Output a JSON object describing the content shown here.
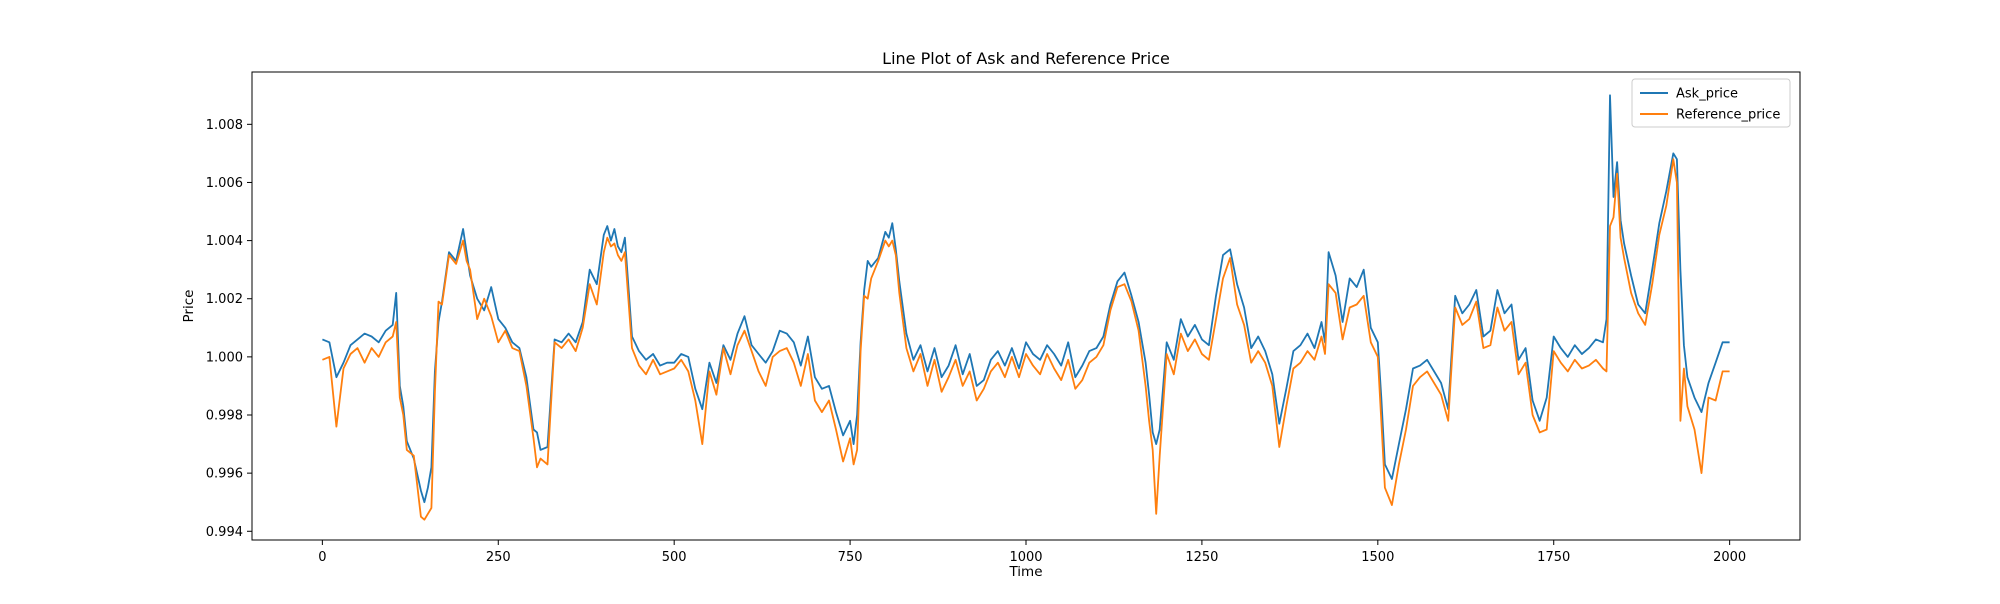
{
  "chart_data": {
    "type": "line",
    "title": "Line Plot of Ask and Reference Price",
    "xlabel": "Time",
    "ylabel": "Price",
    "xlim": [
      -100,
      2100
    ],
    "ylim": [
      0.9937,
      1.0098
    ],
    "xticks": [
      0,
      250,
      500,
      750,
      1000,
      1250,
      1500,
      1750,
      2000
    ],
    "xtick_labels": [
      "0",
      "250",
      "500",
      "750",
      "1000",
      "1250",
      "1500",
      "1750",
      "2000"
    ],
    "yticks": [
      0.994,
      0.996,
      0.998,
      1.0,
      1.002,
      1.004,
      1.006,
      1.008
    ],
    "ytick_labels": [
      "0.994",
      "0.996",
      "0.998",
      "1.000",
      "1.002",
      "1.004",
      "1.006",
      "1.008"
    ],
    "grid": false,
    "legend_position": "top-right",
    "series": [
      {
        "name": "Ask_price",
        "color": "#1f77b4",
        "x": [
          0,
          10,
          20,
          30,
          40,
          50,
          60,
          70,
          80,
          90,
          100,
          105,
          110,
          115,
          120,
          130,
          140,
          145,
          150,
          155,
          160,
          165,
          170,
          180,
          190,
          200,
          205,
          210,
          220,
          230,
          240,
          250,
          260,
          270,
          280,
          290,
          300,
          305,
          310,
          320,
          330,
          340,
          350,
          360,
          370,
          380,
          390,
          400,
          405,
          410,
          415,
          420,
          425,
          430,
          440,
          450,
          460,
          470,
          480,
          490,
          500,
          510,
          520,
          530,
          540,
          550,
          560,
          570,
          580,
          590,
          600,
          610,
          620,
          630,
          640,
          650,
          660,
          670,
          680,
          690,
          700,
          710,
          720,
          730,
          740,
          750,
          755,
          760,
          765,
          770,
          775,
          780,
          790,
          800,
          805,
          810,
          815,
          820,
          830,
          840,
          850,
          860,
          870,
          880,
          890,
          900,
          910,
          920,
          930,
          940,
          950,
          960,
          970,
          980,
          990,
          1000,
          1010,
          1020,
          1030,
          1040,
          1050,
          1060,
          1070,
          1080,
          1090,
          1100,
          1110,
          1120,
          1130,
          1140,
          1150,
          1160,
          1170,
          1175,
          1180,
          1185,
          1190,
          1200,
          1210,
          1220,
          1230,
          1240,
          1250,
          1260,
          1270,
          1280,
          1290,
          1300,
          1310,
          1320,
          1330,
          1340,
          1350,
          1360,
          1370,
          1380,
          1390,
          1400,
          1410,
          1420,
          1425,
          1430,
          1440,
          1450,
          1460,
          1470,
          1480,
          1490,
          1500,
          1505,
          1510,
          1520,
          1530,
          1540,
          1550,
          1560,
          1570,
          1580,
          1590,
          1600,
          1610,
          1620,
          1630,
          1640,
          1650,
          1660,
          1670,
          1680,
          1690,
          1700,
          1710,
          1720,
          1730,
          1740,
          1750,
          1760,
          1770,
          1780,
          1790,
          1800,
          1810,
          1820,
          1825,
          1830,
          1835,
          1840,
          1845,
          1850,
          1860,
          1870,
          1880,
          1890,
          1900,
          1910,
          1920,
          1925,
          1930,
          1935,
          1940,
          1950,
          1960,
          1970,
          1980,
          1990,
          2000
        ],
        "values": [
          1.0006,
          1.0005,
          0.9993,
          0.9998,
          1.0004,
          1.0006,
          1.0008,
          1.0007,
          1.0005,
          1.0009,
          1.0011,
          1.0022,
          0.999,
          0.9983,
          0.9971,
          0.9965,
          0.9954,
          0.995,
          0.9955,
          0.9962,
          0.9995,
          1.0012,
          1.0019,
          1.0036,
          1.0033,
          1.0044,
          1.0036,
          1.0028,
          1.002,
          1.0016,
          1.0024,
          1.0013,
          1.001,
          1.0005,
          1.0003,
          0.9993,
          0.9975,
          0.9974,
          0.9968,
          0.9969,
          1.0006,
          1.0005,
          1.0008,
          1.0005,
          1.0012,
          1.003,
          1.0025,
          1.0042,
          1.0045,
          1.004,
          1.0044,
          1.0038,
          1.0036,
          1.0041,
          1.0007,
          1.0002,
          0.9999,
          1.0001,
          0.9997,
          0.9998,
          0.9998,
          1.0001,
          1.0,
          0.9989,
          0.9982,
          0.9998,
          0.9991,
          1.0004,
          0.9999,
          1.0008,
          1.0014,
          1.0004,
          1.0001,
          0.9998,
          1.0002,
          1.0009,
          1.0008,
          1.0005,
          0.9997,
          1.0007,
          0.9993,
          0.9989,
          0.999,
          0.9981,
          0.9973,
          0.9978,
          0.997,
          0.998,
          1.0005,
          1.0023,
          1.0033,
          1.0031,
          1.0034,
          1.0043,
          1.0041,
          1.0046,
          1.0037,
          1.0026,
          1.0008,
          0.9999,
          1.0004,
          0.9995,
          1.0003,
          0.9993,
          0.9997,
          1.0004,
          0.9994,
          1.0001,
          0.999,
          0.9992,
          0.9999,
          1.0002,
          0.9997,
          1.0003,
          0.9996,
          1.0005,
          1.0001,
          0.9999,
          1.0004,
          1.0001,
          0.9997,
          1.0005,
          0.9993,
          0.9997,
          1.0002,
          1.0003,
          1.0007,
          1.0018,
          1.0026,
          1.0029,
          1.0021,
          1.0012,
          0.9998,
          0.9987,
          0.9974,
          0.997,
          0.9975,
          1.0005,
          0.9999,
          1.0013,
          1.0007,
          1.0011,
          1.0006,
          1.0004,
          1.0021,
          1.0035,
          1.0037,
          1.0025,
          1.0017,
          1.0003,
          1.0007,
          1.0002,
          0.9994,
          0.9977,
          0.9989,
          1.0002,
          1.0004,
          1.0008,
          1.0003,
          1.0012,
          1.0005,
          1.0036,
          1.0028,
          1.0012,
          1.0027,
          1.0024,
          1.003,
          1.001,
          1.0005,
          0.9986,
          0.9963,
          0.9958,
          0.997,
          0.9982,
          0.9996,
          0.9997,
          0.9999,
          0.9995,
          0.9991,
          0.9982,
          1.0021,
          1.0015,
          1.0018,
          1.0023,
          1.0007,
          1.0009,
          1.0023,
          1.0015,
          1.0018,
          0.9999,
          1.0003,
          0.9985,
          0.9978,
          0.9986,
          1.0007,
          1.0003,
          1.0,
          1.0004,
          1.0001,
          1.0003,
          1.0006,
          1.0005,
          1.0013,
          1.009,
          1.0055,
          1.0067,
          1.0047,
          1.0039,
          1.0028,
          1.0018,
          1.0015,
          1.003,
          1.0046,
          1.0057,
          1.007,
          1.0068,
          1.003,
          1.0004,
          0.9993,
          0.9986,
          0.9981,
          0.9991,
          0.9998,
          1.0005,
          1.0005
        ]
      },
      {
        "name": "Reference_price",
        "color": "#ff7f0e",
        "x": [
          0,
          10,
          20,
          30,
          40,
          50,
          60,
          70,
          80,
          90,
          100,
          105,
          110,
          115,
          120,
          130,
          140,
          145,
          150,
          155,
          160,
          165,
          170,
          180,
          190,
          200,
          205,
          210,
          220,
          230,
          240,
          250,
          260,
          270,
          280,
          290,
          300,
          305,
          310,
          320,
          330,
          340,
          350,
          360,
          370,
          380,
          390,
          400,
          405,
          410,
          415,
          420,
          425,
          430,
          440,
          450,
          460,
          470,
          480,
          490,
          500,
          510,
          520,
          530,
          540,
          550,
          560,
          570,
          580,
          590,
          600,
          610,
          620,
          630,
          640,
          650,
          660,
          670,
          680,
          690,
          700,
          710,
          720,
          730,
          740,
          750,
          755,
          760,
          765,
          770,
          775,
          780,
          790,
          800,
          805,
          810,
          815,
          820,
          830,
          840,
          850,
          860,
          870,
          880,
          890,
          900,
          910,
          920,
          930,
          940,
          950,
          960,
          970,
          980,
          990,
          1000,
          1010,
          1020,
          1030,
          1040,
          1050,
          1060,
          1070,
          1080,
          1090,
          1100,
          1110,
          1120,
          1130,
          1140,
          1150,
          1160,
          1170,
          1175,
          1180,
          1185,
          1190,
          1200,
          1210,
          1220,
          1230,
          1240,
          1250,
          1260,
          1270,
          1280,
          1290,
          1300,
          1310,
          1320,
          1330,
          1340,
          1350,
          1360,
          1370,
          1380,
          1390,
          1400,
          1410,
          1420,
          1425,
          1430,
          1440,
          1450,
          1460,
          1470,
          1480,
          1490,
          1500,
          1505,
          1510,
          1520,
          1530,
          1540,
          1550,
          1560,
          1570,
          1580,
          1590,
          1600,
          1610,
          1620,
          1630,
          1640,
          1650,
          1660,
          1670,
          1680,
          1690,
          1700,
          1710,
          1720,
          1730,
          1740,
          1750,
          1760,
          1770,
          1780,
          1790,
          1800,
          1810,
          1820,
          1825,
          1830,
          1835,
          1840,
          1845,
          1850,
          1860,
          1870,
          1880,
          1890,
          1900,
          1910,
          1920,
          1925,
          1930,
          1935,
          1940,
          1950,
          1960,
          1970,
          1980,
          1990,
          2000
        ],
        "values": [
          0.9999,
          1.0,
          0.9976,
          0.9996,
          1.0001,
          1.0003,
          0.9998,
          1.0003,
          1.0,
          1.0005,
          1.0007,
          1.0012,
          0.9986,
          0.998,
          0.9968,
          0.9966,
          0.9945,
          0.9944,
          0.9946,
          0.9948,
          0.9988,
          1.0019,
          1.0018,
          1.0035,
          1.0032,
          1.004,
          1.0033,
          1.003,
          1.0013,
          1.002,
          1.0014,
          1.0005,
          1.0009,
          1.0003,
          1.0002,
          0.999,
          0.9972,
          0.9962,
          0.9965,
          0.9963,
          1.0005,
          1.0003,
          1.0006,
          1.0002,
          1.001,
          1.0025,
          1.0018,
          1.0036,
          1.0041,
          1.0038,
          1.0039,
          1.0035,
          1.0033,
          1.0036,
          1.0003,
          0.9997,
          0.9994,
          0.9999,
          0.9994,
          0.9995,
          0.9996,
          0.9999,
          0.9995,
          0.9985,
          0.997,
          0.9995,
          0.9987,
          1.0003,
          0.9994,
          1.0004,
          1.0009,
          1.0002,
          0.9995,
          0.999,
          1.0,
          1.0002,
          1.0003,
          0.9998,
          0.999,
          1.0001,
          0.9985,
          0.9981,
          0.9985,
          0.9975,
          0.9964,
          0.9972,
          0.9963,
          0.9968,
          1.0002,
          1.0021,
          1.002,
          1.0027,
          1.0033,
          1.004,
          1.0038,
          1.004,
          1.0035,
          1.0022,
          1.0003,
          0.9995,
          1.0001,
          0.999,
          0.9999,
          0.9988,
          0.9993,
          0.9999,
          0.999,
          0.9995,
          0.9985,
          0.9989,
          0.9995,
          0.9998,
          0.9993,
          1.0,
          0.9993,
          1.0001,
          0.9997,
          0.9994,
          1.0001,
          0.9996,
          0.9992,
          0.9999,
          0.9989,
          0.9992,
          0.9998,
          1.0,
          1.0004,
          1.0016,
          1.0024,
          1.0025,
          1.0019,
          1.0009,
          0.999,
          0.9978,
          0.9968,
          0.9946,
          0.9966,
          1.0001,
          0.9994,
          1.0008,
          1.0002,
          1.0006,
          1.0001,
          0.9999,
          1.0013,
          1.0027,
          1.0034,
          1.0018,
          1.0011,
          0.9998,
          1.0002,
          0.9998,
          0.999,
          0.9969,
          0.9983,
          0.9996,
          0.9998,
          1.0002,
          0.9999,
          1.0007,
          1.0001,
          1.0025,
          1.0022,
          1.0006,
          1.0017,
          1.0018,
          1.0021,
          1.0005,
          1.0,
          0.9978,
          0.9955,
          0.9949,
          0.9963,
          0.9975,
          0.999,
          0.9993,
          0.9995,
          0.9991,
          0.9987,
          0.9978,
          1.0017,
          1.0011,
          1.0013,
          1.0019,
          1.0003,
          1.0004,
          1.0017,
          1.0009,
          1.0012,
          0.9994,
          0.9998,
          0.998,
          0.9974,
          0.9975,
          1.0002,
          0.9998,
          0.9995,
          0.9999,
          0.9996,
          0.9997,
          0.9999,
          0.9996,
          0.9995,
          1.0045,
          1.0048,
          1.0063,
          1.0041,
          1.0034,
          1.0022,
          1.0015,
          1.0011,
          1.0025,
          1.0042,
          1.0052,
          1.0068,
          1.006,
          0.9978,
          0.9996,
          0.9983,
          0.9975,
          0.996,
          0.9986,
          0.9985,
          0.9995,
          0.9995
        ]
      }
    ]
  }
}
